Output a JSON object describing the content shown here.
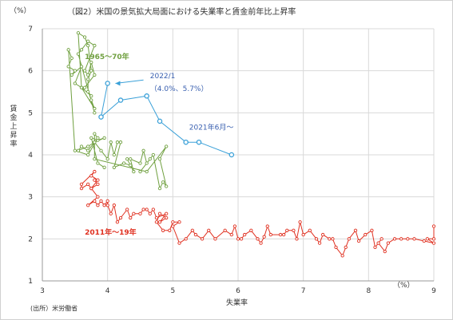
{
  "chart_data": {
    "type": "scatter",
    "title": "（図2）米国の景気拡大局面における失業率と賃金前年比上昇率",
    "xlabel": "失業率",
    "ylabel": "賃金上昇率",
    "x_unit": "（%）",
    "y_unit": "（%）",
    "source": "(出所）米労働省",
    "xlim": [
      3,
      9
    ],
    "ylim": [
      1,
      7
    ],
    "x_ticks": [
      "3",
      "4",
      "5",
      "6",
      "7",
      "8",
      "9"
    ],
    "y_ticks": [
      "1",
      "2",
      "3",
      "4",
      "5",
      "6",
      "7"
    ],
    "grid": true,
    "series": [
      {
        "name": "1965〜70年",
        "color": "#70a040",
        "points": [
          [
            3.95,
            3.7
          ],
          [
            3.85,
            3.8
          ],
          [
            3.75,
            4.4
          ],
          [
            3.85,
            4.35
          ],
          [
            3.95,
            4.4
          ],
          [
            3.8,
            4.3
          ],
          [
            3.7,
            4.2
          ],
          [
            3.55,
            4.1
          ],
          [
            3.6,
            4.2
          ],
          [
            3.7,
            4.1
          ],
          [
            3.8,
            4.3
          ],
          [
            3.9,
            4.1
          ],
          [
            4.0,
            3.9
          ],
          [
            4.05,
            4.3
          ],
          [
            4.1,
            4.0
          ],
          [
            4.15,
            4.3
          ],
          [
            4.2,
            4.3
          ],
          [
            4.1,
            3.7
          ],
          [
            4.25,
            3.8
          ],
          [
            4.35,
            3.75
          ],
          [
            4.3,
            3.9
          ],
          [
            4.4,
            3.6
          ],
          [
            4.35,
            3.9
          ],
          [
            4.5,
            3.8
          ],
          [
            4.55,
            4.1
          ],
          [
            4.6,
            3.8
          ],
          [
            4.5,
            3.6
          ],
          [
            4.65,
            3.9
          ],
          [
            4.7,
            4.0
          ],
          [
            4.8,
            3.2
          ],
          [
            4.85,
            3.35
          ],
          [
            4.9,
            3.25
          ],
          [
            4.8,
            3.9
          ],
          [
            4.9,
            4.2
          ],
          [
            4.6,
            3.6
          ],
          [
            3.8,
            3.9
          ],
          [
            3.8,
            4.5
          ],
          [
            3.85,
            4.4
          ],
          [
            3.7,
            4.0
          ],
          [
            3.5,
            4.1
          ],
          [
            3.4,
            6.5
          ],
          [
            3.45,
            6.3
          ],
          [
            3.4,
            6.1
          ],
          [
            3.5,
            6.0
          ],
          [
            3.45,
            5.9
          ],
          [
            3.6,
            6.1
          ],
          [
            3.5,
            5.7
          ],
          [
            3.6,
            5.6
          ],
          [
            3.55,
            6.9
          ],
          [
            3.65,
            6.8
          ],
          [
            3.7,
            6.6
          ],
          [
            3.75,
            6.0
          ],
          [
            3.7,
            5.8
          ],
          [
            3.7,
            5.5
          ],
          [
            3.75,
            5.4
          ],
          [
            3.6,
            5.6
          ],
          [
            3.8,
            5.1
          ],
          [
            3.75,
            5.3
          ],
          [
            3.8,
            5.0
          ],
          [
            3.55,
            6.4
          ],
          [
            3.6,
            6.5
          ],
          [
            3.7,
            6.7
          ],
          [
            3.8,
            6.6
          ],
          [
            3.65,
            6.0
          ],
          [
            3.7,
            5.9
          ],
          [
            3.75,
            6.2
          ],
          [
            3.8,
            5.9
          ],
          [
            3.65,
            5.6
          ]
        ]
      },
      {
        "name": "2011年〜19年",
        "color": "#e03020",
        "points": [
          [
            9.0,
            2.3
          ],
          [
            9.0,
            2.0
          ],
          [
            8.9,
            2.0
          ],
          [
            9.0,
            1.9
          ],
          [
            8.85,
            1.95
          ],
          [
            8.7,
            2.0
          ],
          [
            8.6,
            2.0
          ],
          [
            8.5,
            2.0
          ],
          [
            8.4,
            2.0
          ],
          [
            8.3,
            1.9
          ],
          [
            8.25,
            1.7
          ],
          [
            8.15,
            1.9
          ],
          [
            8.2,
            2.0
          ],
          [
            8.1,
            1.8
          ],
          [
            8.05,
            2.2
          ],
          [
            7.95,
            2.1
          ],
          [
            7.85,
            1.95
          ],
          [
            7.8,
            2.2
          ],
          [
            7.7,
            2.0
          ],
          [
            7.65,
            1.8
          ],
          [
            7.6,
            1.6
          ],
          [
            7.5,
            1.8
          ],
          [
            7.45,
            2.0
          ],
          [
            7.4,
            2.0
          ],
          [
            7.3,
            2.1
          ],
          [
            7.25,
            1.9
          ],
          [
            7.2,
            2.0
          ],
          [
            7.1,
            2.2
          ],
          [
            7.0,
            2.1
          ],
          [
            6.95,
            2.4
          ],
          [
            6.9,
            2.0
          ],
          [
            6.85,
            2.2
          ],
          [
            6.75,
            2.2
          ],
          [
            6.7,
            2.1
          ],
          [
            6.65,
            2.1
          ],
          [
            6.5,
            2.1
          ],
          [
            6.45,
            2.3
          ],
          [
            6.4,
            2.05
          ],
          [
            6.35,
            1.9
          ],
          [
            6.3,
            2.0
          ],
          [
            6.2,
            2.2
          ],
          [
            6.1,
            2.1
          ],
          [
            6.05,
            2.0
          ],
          [
            6.0,
            2.0
          ],
          [
            5.95,
            2.3
          ],
          [
            5.9,
            2.1
          ],
          [
            5.8,
            2.2
          ],
          [
            5.65,
            2.0
          ],
          [
            5.55,
            2.2
          ],
          [
            5.45,
            2.0
          ],
          [
            5.35,
            2.1
          ],
          [
            5.3,
            2.2
          ],
          [
            5.2,
            2.0
          ],
          [
            5.1,
            1.9
          ],
          [
            5.0,
            2.3
          ],
          [
            5.1,
            2.4
          ],
          [
            5.0,
            2.4
          ],
          [
            4.95,
            2.2
          ],
          [
            4.85,
            2.2
          ],
          [
            4.75,
            2.4
          ],
          [
            4.8,
            2.6
          ],
          [
            4.9,
            2.5
          ],
          [
            4.8,
            2.4
          ],
          [
            4.9,
            2.6
          ],
          [
            4.75,
            2.5
          ],
          [
            4.7,
            2.7
          ],
          [
            4.65,
            2.6
          ],
          [
            4.6,
            2.7
          ],
          [
            4.55,
            2.7
          ],
          [
            4.5,
            2.6
          ],
          [
            4.4,
            2.6
          ],
          [
            4.35,
            2.5
          ],
          [
            4.3,
            2.7
          ],
          [
            4.2,
            2.5
          ],
          [
            4.15,
            2.4
          ],
          [
            4.1,
            2.8
          ],
          [
            4.05,
            2.6
          ],
          [
            4.0,
            2.8
          ],
          [
            4.0,
            2.9
          ],
          [
            3.95,
            2.8
          ],
          [
            3.9,
            2.9
          ],
          [
            3.85,
            2.8
          ],
          [
            3.8,
            2.9
          ],
          [
            3.7,
            2.8
          ],
          [
            3.85,
            3.0
          ],
          [
            3.75,
            3.2
          ],
          [
            3.85,
            3.4
          ],
          [
            3.75,
            3.5
          ],
          [
            3.8,
            3.6
          ],
          [
            3.6,
            3.3
          ],
          [
            3.6,
            3.2
          ],
          [
            3.7,
            3.3
          ],
          [
            3.75,
            3.2
          ],
          [
            3.85,
            3.3
          ],
          [
            3.8,
            3.4
          ]
        ]
      },
      {
        "name": "2021年6月〜",
        "color": "#3aa0d8",
        "points": [
          [
            5.9,
            4.0
          ],
          [
            5.4,
            4.3
          ],
          [
            5.2,
            4.3
          ],
          [
            4.8,
            4.8
          ],
          [
            4.6,
            5.4
          ],
          [
            4.2,
            5.3
          ],
          [
            3.9,
            4.9
          ],
          [
            4.0,
            5.7
          ]
        ]
      }
    ],
    "annotations": [
      {
        "text": "1965〜70年",
        "color": "#70a040"
      },
      {
        "text": "2011年〜19年",
        "color": "#e03020"
      },
      {
        "text": "2021年6月〜",
        "color": "#3a60b0"
      },
      {
        "text": "2022/1",
        "color": "#3a60b0"
      },
      {
        "text": "（4.0%、5.7%）",
        "color": "#3a60b0"
      }
    ]
  }
}
